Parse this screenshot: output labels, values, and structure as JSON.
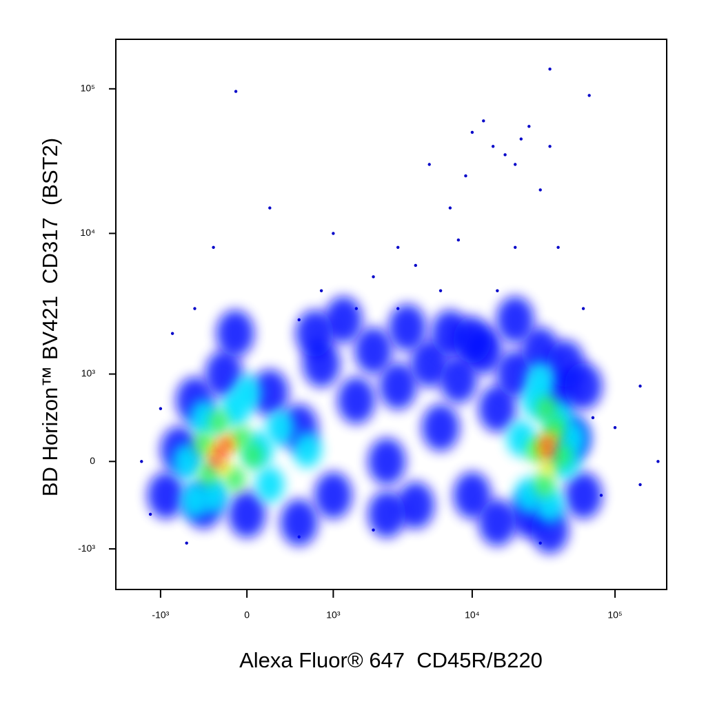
{
  "chart_data": {
    "type": "scatter",
    "x_label": "Alexa Fluor® 647  CD45R/B220",
    "y_label": "BD Horizon™ BV421  CD317  (BST2)",
    "xscale": "biexponential",
    "yscale": "biexponential",
    "xlim": [
      -2160,
      230000
    ],
    "ylim": [
      -2000,
      220000
    ],
    "xticks": [
      {
        "value": -1000,
        "label": "-10³"
      },
      0,
      {
        "value": 1000,
        "label": "10³"
      },
      {
        "value": 10000,
        "label": "10⁴"
      },
      {
        "value": 100000,
        "label": "10⁵"
      }
    ],
    "yticks": [
      {
        "value": -1000,
        "label": "-10³"
      },
      0,
      {
        "value": 1000,
        "label": "10³"
      },
      {
        "value": 10000,
        "label": "10⁴"
      },
      {
        "value": 100000,
        "label": "10⁵"
      }
    ],
    "series": [
      {
        "color": "#0000c8",
        "x": [
          14000,
          20000,
          9000,
          25000,
          12000,
          30000,
          7000,
          17000,
          22000,
          10000,
          5000,
          35000,
          35000,
          -95,
          66000,
          2000,
          3000,
          1500,
          800,
          500,
          4000,
          -300,
          200,
          -500,
          6000,
          3000,
          15000,
          40000,
          60000,
          1000,
          8000,
          20000,
          -800,
          100000,
          150000,
          200000,
          150000,
          -1400,
          -1200,
          -1000,
          80000,
          70000,
          -600,
          30000,
          2000,
          500
        ],
        "values": [
          40000,
          30000,
          25000,
          55000,
          60000,
          20000,
          15000,
          35000,
          45000,
          50000,
          30000,
          40000,
          137000,
          96000,
          90000,
          5000,
          8000,
          3000,
          4000,
          2500,
          6000,
          8000,
          15000,
          3000,
          4000,
          3000,
          4000,
          8000,
          3000,
          10000,
          9000,
          8000,
          2000,
          300,
          800,
          0,
          -200,
          0,
          -500,
          500,
          -300,
          400,
          -900,
          -900,
          -700,
          -800
        ]
      },
      {
        "color": "#0010ff",
        "x": [
          -700,
          -500,
          -400,
          -200,
          0,
          200,
          500,
          800,
          1000,
          1500,
          2000,
          2500,
          3000,
          4000,
          5000,
          6000,
          8000,
          10000,
          12000,
          15000,
          20000,
          25000,
          30000,
          40000,
          50000,
          60000,
          45000,
          1200,
          3500,
          7000,
          20000,
          500,
          10000,
          -900,
          60000,
          -100,
          700,
          2500,
          15000,
          35000
        ],
        "values": [
          100,
          600,
          -400,
          1000,
          -500,
          700,
          300,
          1200,
          -300,
          600,
          1500,
          0,
          800,
          -400,
          1200,
          300,
          900,
          -300,
          1500,
          500,
          1000,
          -500,
          1500,
          700,
          200,
          -300,
          1200,
          2500,
          2200,
          2000,
          2500,
          -600,
          1800,
          -300,
          800,
          2000,
          2000,
          -500,
          -600,
          -700
        ]
      },
      {
        "color": "#00e0ff",
        "x": [
          -600,
          -400,
          -100,
          100,
          -300,
          200,
          -500,
          0,
          300,
          600,
          22000,
          28000,
          40000,
          45000,
          25000,
          35000,
          50000,
          30000
        ],
        "values": [
          0,
          400,
          500,
          100,
          -300,
          -200,
          -350,
          700,
          300,
          100,
          200,
          600,
          400,
          0,
          -300,
          -400,
          200,
          900
        ]
      },
      {
        "color": "#30f060",
        "x": [
          -400,
          -250,
          -50,
          -100,
          -350,
          50,
          28000,
          38000,
          32000,
          42000,
          33000
        ],
        "values": [
          150,
          350,
          200,
          -150,
          -100,
          50,
          100,
          300,
          -200,
          50,
          500
        ]
      },
      {
        "color": "#f0f000",
        "x": [
          -300,
          -150,
          -200,
          31000,
          36000,
          34000
        ],
        "values": [
          100,
          150,
          -50,
          100,
          200,
          -50
        ]
      },
      {
        "color": "#ff2000",
        "x": [
          -230,
          -180,
          -280,
          34000,
          33000
        ],
        "values": [
          80,
          150,
          0,
          80,
          160
        ]
      }
    ]
  }
}
